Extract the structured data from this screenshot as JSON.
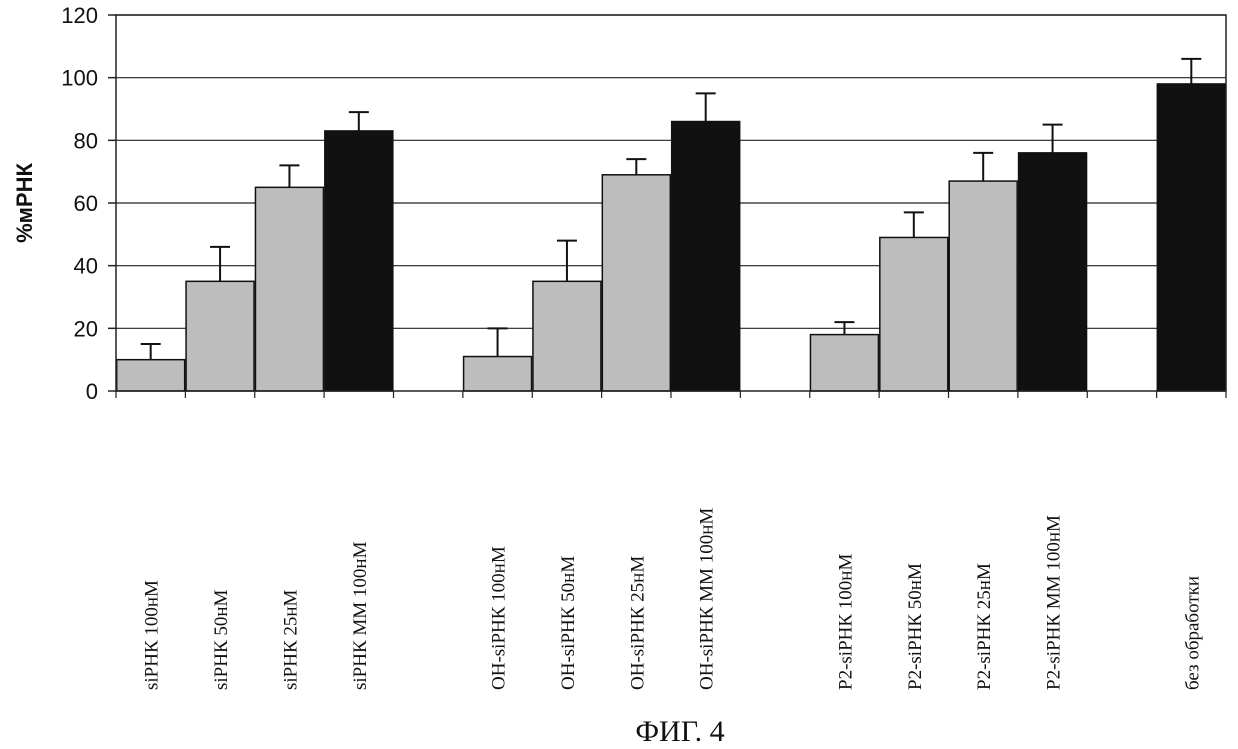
{
  "chart_data": {
    "type": "bar",
    "ylabel": "%мРНК",
    "xlabel": "",
    "ylim": [
      0,
      120
    ],
    "yticks": [
      0,
      20,
      40,
      60,
      80,
      100,
      120
    ],
    "grid": true,
    "categories": [
      "siРНК 100нМ",
      "siРНК 50нМ",
      "siРНК 25нМ",
      "siРНК ММ 100нМ",
      "ОН-siРНК 100нМ",
      "ОН-siРНК 50нМ",
      "ОН-siРНК 25нМ",
      "ОН-siРНК ММ 100нМ",
      "Р2-siРНК 100нМ",
      "Р2-siРНК 50нМ",
      "Р2-siРНК 25нМ",
      "Р2-siРНК ММ 100нМ",
      "без обработки"
    ],
    "values": [
      10,
      35,
      65,
      83,
      11,
      35,
      69,
      86,
      18,
      49,
      67,
      76,
      98
    ],
    "errors": [
      5,
      11,
      7,
      6,
      9,
      13,
      5,
      9,
      4,
      8,
      9,
      9,
      8
    ],
    "bar_colors": [
      "#bdbdbd",
      "#bdbdbd",
      "#bdbdbd",
      "#111111",
      "#bdbdbd",
      "#bdbdbd",
      "#bdbdbd",
      "#111111",
      "#bdbdbd",
      "#bdbdbd",
      "#bdbdbd",
      "#111111",
      "#111111"
    ]
  },
  "caption": "ФИГ. 4"
}
